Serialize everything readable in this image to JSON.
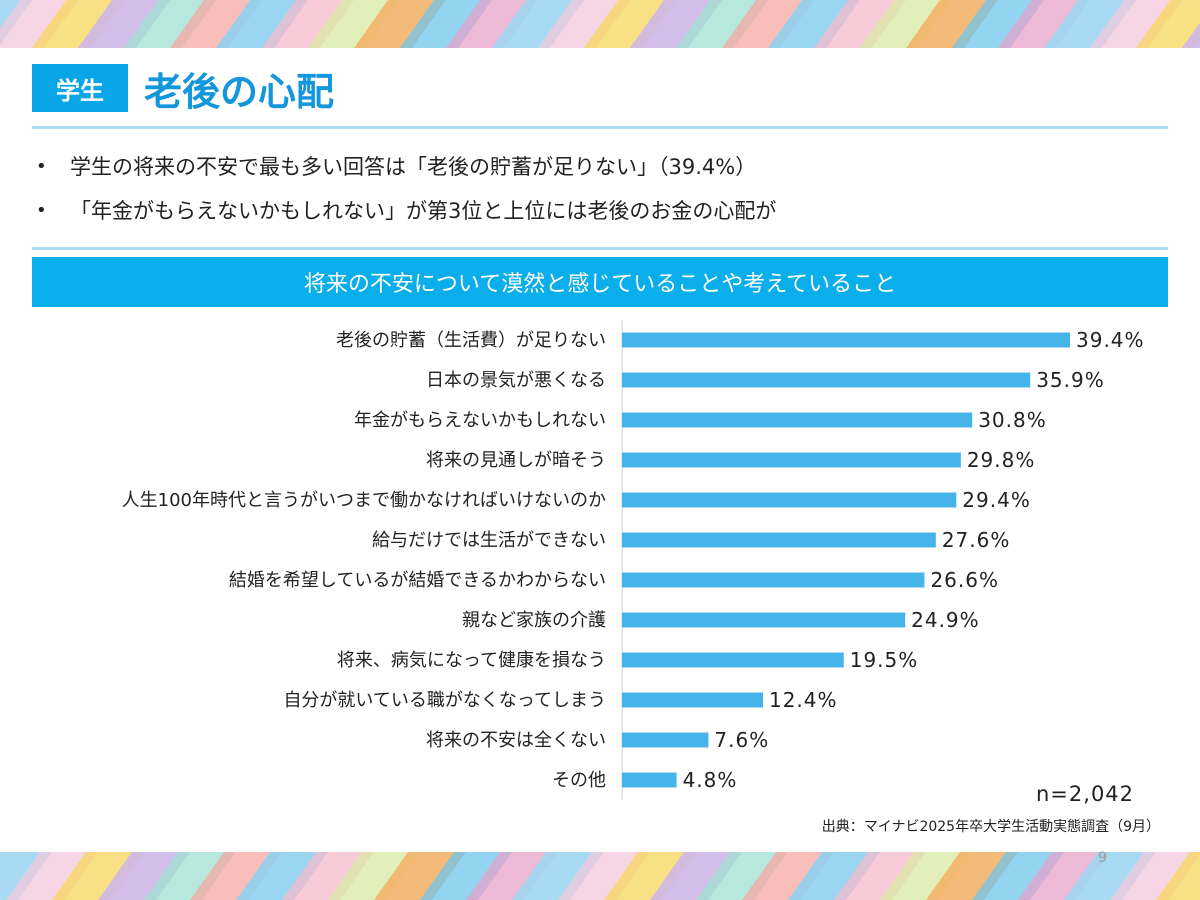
{
  "header": {
    "badge": "学生",
    "title": "老後の心配"
  },
  "bullets": [
    "学生の将来の不安で最も多い回答は「老後の貯蓄が足りない」（39.4%）",
    "「年金がもらえないかもしれない」が第3位と上位には老後のお金の心配が"
  ],
  "colors": {
    "accent": "#0aaeea",
    "bar": "#45b4e8",
    "title": "#1296dc"
  },
  "chart_data": {
    "type": "bar",
    "orientation": "horizontal",
    "title": "将来の不安について漠然と感じていることや考えていること",
    "categories": [
      "老後の貯蓄（生活費）が足りない",
      "日本の景気が悪くなる",
      "年金がもらえないかもしれない",
      "将来の見通しが暗そう",
      "人生100年時代と言うがいつまで働かなければいけないのか",
      "給与だけでは生活ができない",
      "結婚を希望しているが結婚できるかわからない",
      "親など家族の介護",
      "将来、病気になって健康を損なう",
      "自分が就いている職がなくなってしまう",
      "将来の不安は全くない",
      "その他"
    ],
    "values": [
      39.4,
      35.9,
      30.8,
      29.8,
      29.4,
      27.6,
      26.6,
      24.9,
      19.5,
      12.4,
      7.6,
      4.8
    ],
    "value_labels": [
      "39.4%",
      "35.9%",
      "30.8%",
      "29.8%",
      "29.4%",
      "27.6%",
      "26.6%",
      "24.9%",
      "19.5%",
      "12.4%",
      "7.6%",
      "4.8%"
    ],
    "xlim": [
      0,
      40
    ],
    "grid": false,
    "legend": "none",
    "n_label": "n=2,042"
  },
  "footer": {
    "source": "出典：マイナビ2025年卒大学生活動実態調査（9月）",
    "page_number": "9"
  }
}
